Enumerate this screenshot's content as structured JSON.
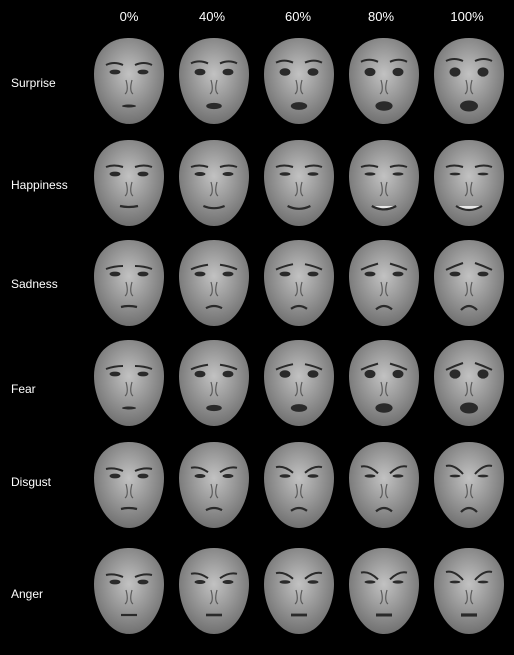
{
  "intensities": [
    "0%",
    "40%",
    "60%",
    "80%",
    "100%"
  ],
  "rows": [
    {
      "label": "Surprise",
      "levels": [
        0,
        0.4,
        0.6,
        0.8,
        1.0
      ]
    },
    {
      "label": "Happiness",
      "levels": [
        0,
        0.4,
        0.6,
        0.8,
        1.0
      ]
    },
    {
      "label": "Sadness",
      "levels": [
        0,
        0.4,
        0.6,
        0.8,
        1.0
      ]
    },
    {
      "label": "Fear",
      "levels": [
        0,
        0.4,
        0.6,
        0.8,
        1.0
      ]
    },
    {
      "label": "Disgust",
      "levels": [
        0,
        0.4,
        0.6,
        0.8,
        1.0
      ]
    },
    {
      "label": "Anger",
      "levels": [
        0,
        0.4,
        0.6,
        0.8,
        1.0
      ]
    }
  ],
  "colors": {
    "background": "#000000",
    "label": "#ffffff",
    "skin": "#9a9a9a",
    "skin_light": "#c2c2c2",
    "feature": "#2a2a2a"
  }
}
